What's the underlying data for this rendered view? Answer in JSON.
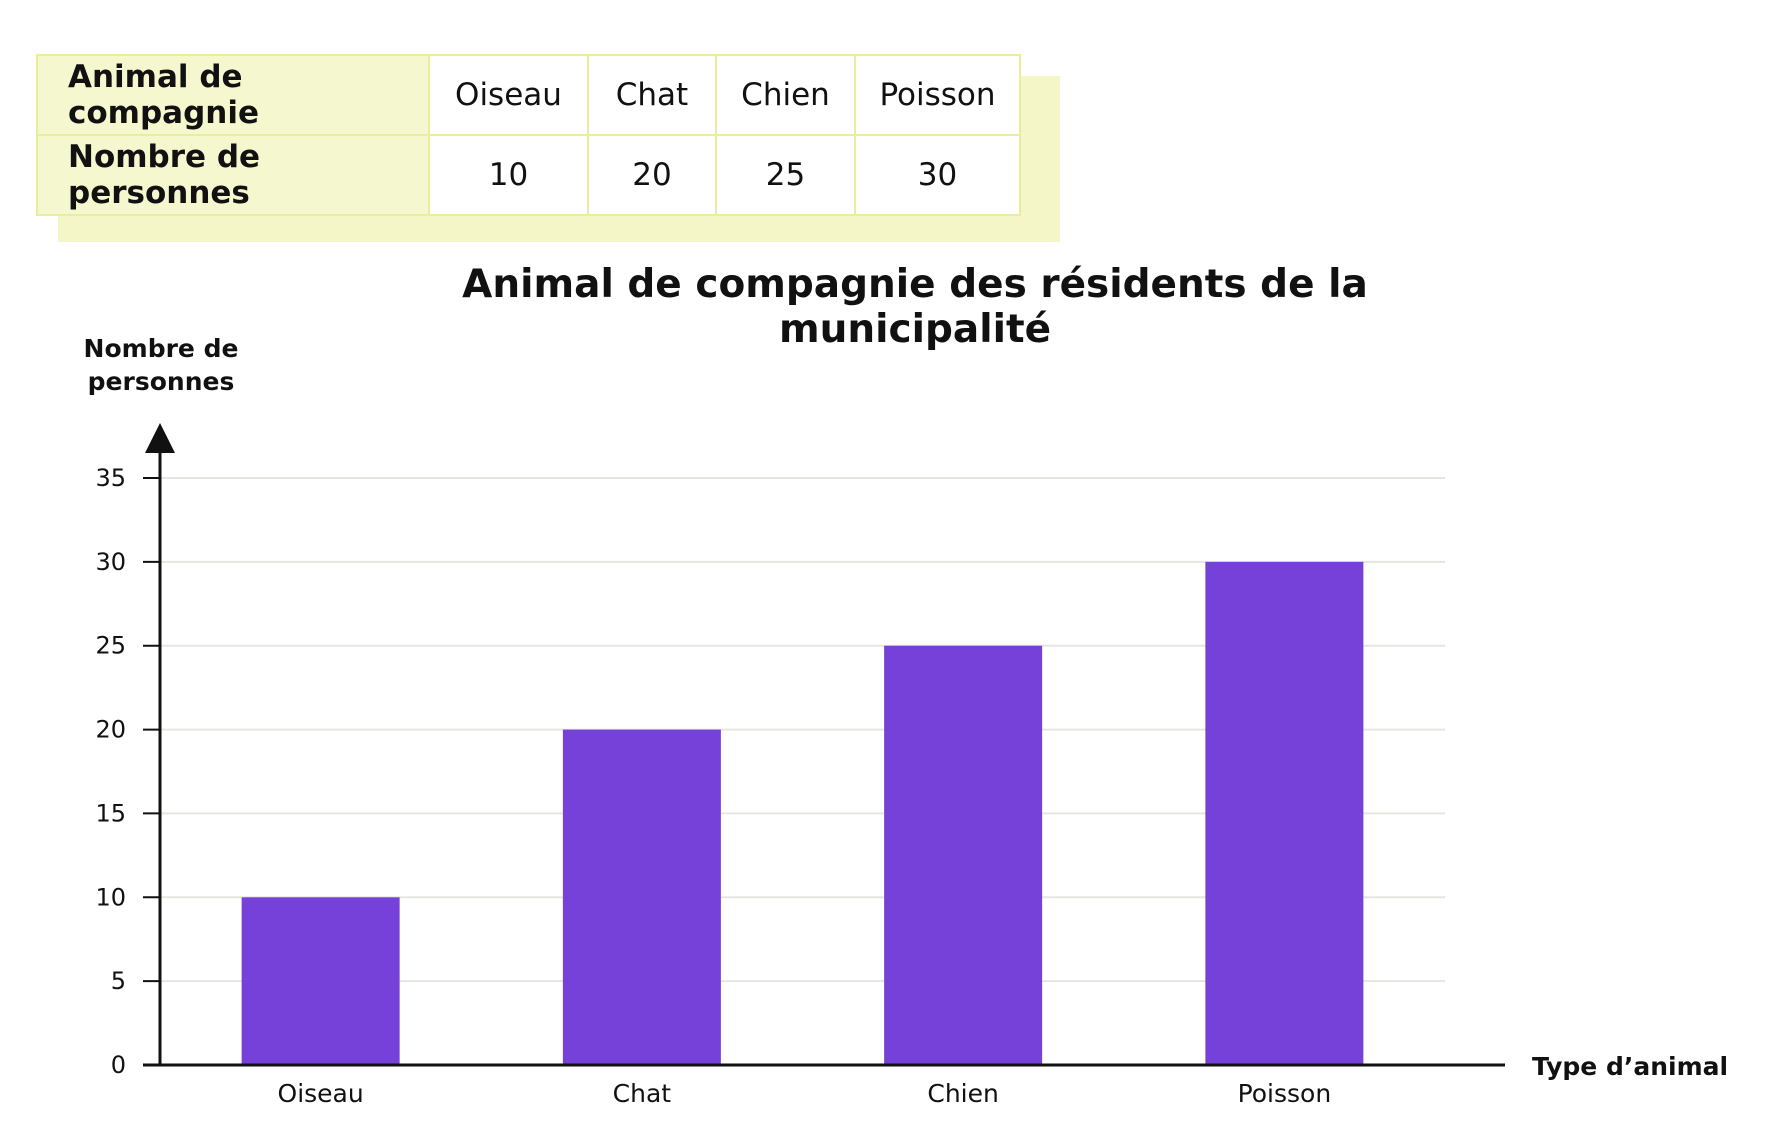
{
  "table": {
    "header_label": "Animal de compagnie",
    "value_label": "Nombre de personnes",
    "columns": [
      "Oiseau",
      "Chat",
      "Chien",
      "Poisson"
    ],
    "values": [
      "10",
      "20",
      "25",
      "30"
    ]
  },
  "colors": {
    "bar": "#7541d8",
    "table_border": "#e9ee9a",
    "table_header_bg": "#f5f7cf",
    "gridline": "#e6e6e0"
  },
  "chart_data": {
    "type": "bar",
    "title": "Animal de compagnie des résidents de la municipalité",
    "xlabel": "Type d’animal",
    "ylabel": [
      "Nombre de",
      "personnes"
    ],
    "categories": [
      "Oiseau",
      "Chat",
      "Chien",
      "Poisson"
    ],
    "values": [
      10,
      20,
      25,
      30
    ],
    "ylim": [
      0,
      35
    ],
    "yticks": [
      0,
      5,
      10,
      15,
      20,
      25,
      30,
      35
    ],
    "grid": true
  }
}
